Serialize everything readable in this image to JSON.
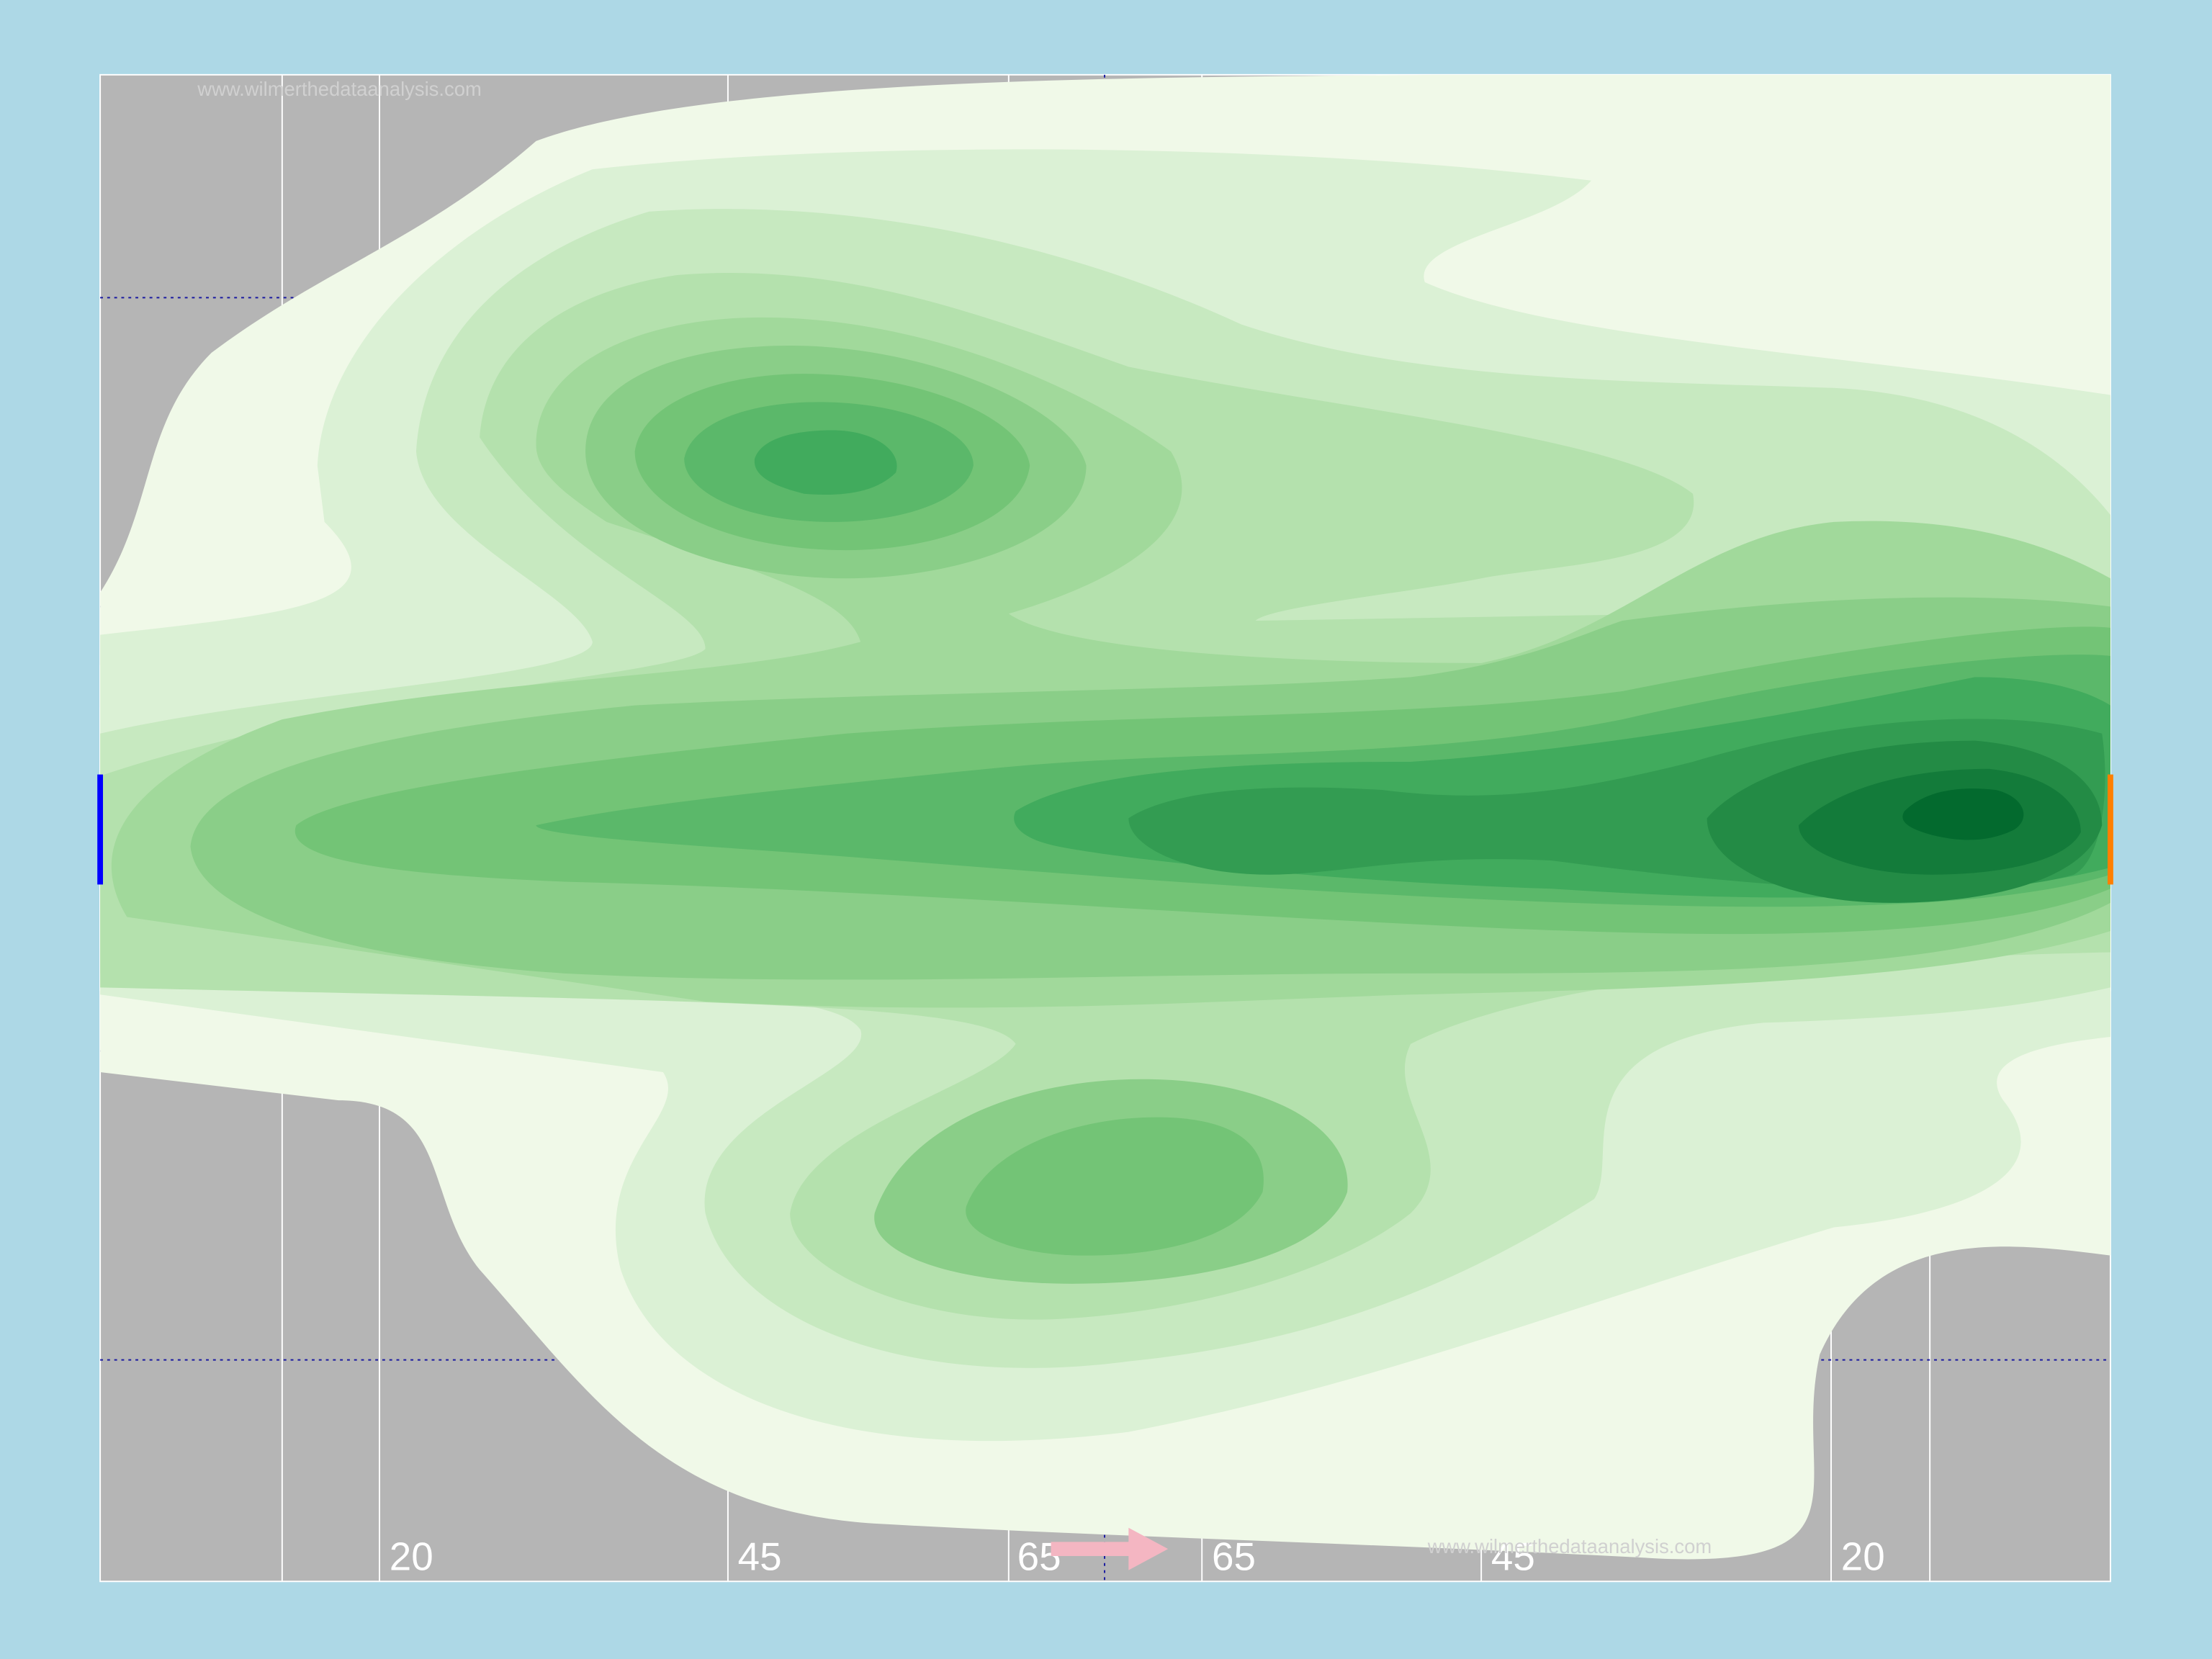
{
  "pitch": {
    "background": "#add8e6",
    "surface": "#b5b5b5",
    "line_color": "#ffffff",
    "channel_line_color": "#1a1aa0",
    "left_goal_color": "#0000ff",
    "right_goal_color": "#ff7f00",
    "attack_arrow_color": "#f4b6c2",
    "yard_markers": [
      "20",
      "45",
      "65",
      "65",
      "45",
      "20"
    ],
    "watermarks": [
      "www.wilmerthedataanalysis.com",
      "www.wilmerthedataanalysis.com"
    ]
  },
  "density_palette": [
    "#f0f9e8",
    "#dbf1d5",
    "#c7e9c0",
    "#b4e1ad",
    "#a1d99b",
    "#8ace88",
    "#73c476",
    "#5bb86a",
    "#41ab5d",
    "#339c52",
    "#238b45",
    "#137b3a",
    "#036a2e",
    "#005a24"
  ]
}
